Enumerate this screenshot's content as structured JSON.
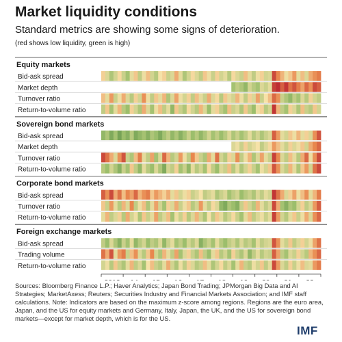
{
  "header": {
    "title": "Market liquidity conditions",
    "subtitle": "Standard metrics are showing some signs of deterioration.",
    "note": "(red shows low liquidity, green is high)"
  },
  "chart_data": {
    "type": "heatmap",
    "title": "Market liquidity conditions",
    "legend": "red shows low liquidity, green is high",
    "x_ticks": [
      "2013",
      "14",
      "15",
      "16",
      "17",
      "18",
      "19",
      "20",
      "21",
      "22"
    ],
    "colors": {
      "low": "#b8222f",
      "mid_low": "#e8874e",
      "mid": "#f6e2a8",
      "mid_high": "#9cbe6c",
      "high": "#3f7a38",
      "missing": "#ffffff"
    },
    "groups": [
      {
        "name": "Equity markets",
        "rows": [
          {
            "name": "Bid-ask spread",
            "z": [
              -0.2,
              0.3,
              0.8,
              0.4,
              -0.1,
              0.5,
              0.9,
              0.2,
              -0.3,
              0.6,
              0.1,
              -0.4,
              0.4,
              0.7,
              0.0,
              -0.2,
              0.5,
              0.3,
              -0.6,
              0.2,
              0.8,
              0.4,
              -0.1,
              0.3,
              0.6,
              -0.3,
              0.1,
              0.5,
              -0.2,
              0.4,
              0.2,
              0.7,
              -0.1,
              0.3,
              0.5,
              -0.4,
              0.2,
              0.6,
              0.1,
              -0.2,
              0.4,
              0.3,
              -1.6,
              -1.0,
              -0.5,
              0.1,
              -0.3,
              -0.8,
              0.2,
              -0.4,
              0.3,
              -0.6,
              -0.9,
              -1.1
            ]
          },
          {
            "name": "Market depth",
            "z": [
              null,
              null,
              null,
              null,
              null,
              null,
              null,
              null,
              null,
              null,
              null,
              null,
              null,
              null,
              null,
              null,
              null,
              null,
              null,
              null,
              null,
              null,
              null,
              null,
              null,
              null,
              null,
              null,
              null,
              null,
              null,
              null,
              0.9,
              0.6,
              0.8,
              1.1,
              0.4,
              0.7,
              0.9,
              0.3,
              0.5,
              0.2,
              -1.7,
              -1.9,
              -1.4,
              -1.8,
              -1.2,
              -1.5,
              -1.1,
              -0.7,
              -1.3,
              -0.9,
              -1.6,
              -1.4
            ]
          },
          {
            "name": "Turnover ratio",
            "z": [
              -0.4,
              0.2,
              -0.8,
              0.5,
              0.1,
              -0.6,
              0.3,
              0.7,
              -0.2,
              0.4,
              -0.9,
              0.1,
              0.6,
              -0.3,
              0.2,
              -0.5,
              0.8,
              0.3,
              -0.7,
              0.1,
              0.4,
              -0.2,
              0.6,
              -0.4,
              0.2,
              0.5,
              -0.6,
              0.3,
              -0.1,
              0.7,
              -0.3,
              0.2,
              0.4,
              -0.5,
              0.1,
              0.6,
              -0.2,
              0.3,
              -0.7,
              0.5,
              0.0,
              -0.4,
              -1.3,
              -0.9,
              0.5,
              0.8,
              1.1,
              0.6,
              0.9,
              0.3,
              0.7,
              -0.2,
              0.4,
              0.6
            ]
          },
          {
            "name": "Return-to-volume ratio",
            "z": [
              0.6,
              -0.3,
              0.9,
              0.2,
              -0.5,
              0.7,
              1.0,
              -0.2,
              0.4,
              0.8,
              -0.6,
              0.3,
              0.9,
              0.1,
              -0.4,
              0.6,
              0.2,
              1.1,
              -0.3,
              0.5,
              0.8,
              -0.1,
              0.4,
              0.7,
              -0.5,
              0.3,
              1.0,
              0.2,
              -0.2,
              0.6,
              0.9,
              -0.4,
              0.5,
              0.3,
              0.8,
              -0.3,
              0.6,
              1.0,
              0.1,
              -0.2,
              0.7,
              0.4,
              -1.8,
              -0.5,
              0.6,
              0.9,
              -0.2,
              0.3,
              0.8,
              -0.4,
              0.5,
              0.7,
              -0.3,
              0.4
            ]
          }
        ]
      },
      {
        "name": "Sovereign bond markets",
        "rows": [
          {
            "name": "Bid-ask spread",
            "z": [
              1.1,
              0.8,
              1.3,
              0.9,
              1.4,
              1.0,
              1.2,
              0.7,
              1.3,
              1.1,
              0.9,
              1.2,
              0.8,
              1.0,
              1.3,
              0.9,
              0.6,
              1.1,
              0.8,
              1.2,
              0.9,
              0.5,
              1.0,
              0.7,
              1.1,
              0.8,
              0.4,
              0.9,
              0.6,
              1.0,
              0.7,
              0.3,
              0.8,
              0.5,
              0.9,
              0.6,
              0.2,
              0.7,
              0.4,
              0.8,
              0.5,
              0.3,
              -1.4,
              -0.8,
              0.2,
              0.4,
              -0.3,
              0.1,
              -0.5,
              0.2,
              -0.2,
              0.3,
              -0.9,
              -1.5
            ]
          },
          {
            "name": "Market depth",
            "z": [
              null,
              null,
              null,
              null,
              null,
              null,
              null,
              null,
              null,
              null,
              null,
              null,
              null,
              null,
              null,
              null,
              null,
              null,
              null,
              null,
              null,
              null,
              null,
              null,
              null,
              null,
              null,
              null,
              null,
              null,
              null,
              null,
              0.3,
              0.1,
              0.5,
              -0.2,
              0.4,
              0.2,
              0.0,
              0.6,
              0.3,
              -0.1,
              -0.8,
              -0.4,
              0.2,
              0.5,
              -0.2,
              0.3,
              0.1,
              -0.3,
              0.4,
              -0.6,
              -1.0,
              -1.3
            ]
          },
          {
            "name": "Turnover ratio",
            "z": [
              -1.6,
              -1.2,
              -0.6,
              0.3,
              -0.9,
              -1.5,
              0.5,
              0.8,
              -0.4,
              -1.1,
              0.2,
              0.6,
              -0.7,
              0.9,
              0.3,
              -1.3,
              -0.5,
              0.7,
              0.4,
              -0.8,
              0.1,
              0.6,
              -1.0,
              -0.3,
              0.5,
              0.8,
              -0.6,
              0.2,
              -1.2,
              0.4,
              0.7,
              -0.2,
              0.3,
              -0.9,
              0.6,
              0.1,
              -0.5,
              0.8,
              0.3,
              -0.7,
              0.2,
              0.5,
              -1.7,
              -1.0,
              0.3,
              0.6,
              -0.4,
              0.2,
              0.7,
              -0.6,
              -1.3,
              0.1,
              -0.9,
              -1.6
            ]
          },
          {
            "name": "Return-to-volume ratio",
            "z": [
              0.7,
              1.0,
              0.4,
              0.8,
              1.2,
              0.5,
              0.9,
              -0.3,
              0.6,
              1.1,
              0.2,
              0.7,
              1.0,
              0.3,
              0.8,
              1.3,
              0.4,
              0.6,
              -0.2,
              0.9,
              0.5,
              1.1,
              0.2,
              0.7,
              0.4,
              0.9,
              -0.1,
              0.6,
              1.0,
              0.3,
              0.5,
              -0.4,
              0.7,
              0.2,
              0.8,
              0.4,
              -0.2,
              0.5,
              0.9,
              0.1,
              0.4,
              -0.3,
              -1.5,
              -0.9,
              0.3,
              0.6,
              -0.5,
              0.2,
              0.8,
              -0.3,
              -0.8,
              0.4,
              -1.2,
              -1.6
            ]
          }
        ]
      },
      {
        "name": "Corporate bond markets",
        "rows": [
          {
            "name": "Bid-ask spread",
            "z": [
              -1.4,
              -0.9,
              -1.6,
              -0.6,
              -1.2,
              -0.4,
              -1.0,
              -0.7,
              -1.3,
              -0.5,
              -0.9,
              -1.1,
              -0.3,
              -0.8,
              -0.5,
              -0.2,
              -0.6,
              0.2,
              -0.3,
              0.4,
              0.1,
              -0.2,
              0.5,
              0.3,
              0.0,
              0.6,
              0.4,
              0.2,
              0.8,
              0.5,
              0.3,
              0.9,
              0.6,
              0.4,
              1.0,
              0.7,
              0.5,
              0.8,
              0.3,
              0.6,
              0.2,
              0.4,
              -1.8,
              -1.2,
              -0.6,
              0.3,
              -0.2,
              -0.7,
              0.1,
              -0.4,
              -0.9,
              0.2,
              -0.5,
              -1.1
            ]
          },
          {
            "name": "Turnover ratio",
            "z": [
              -0.3,
              0.5,
              -0.8,
              0.2,
              0.7,
              -0.5,
              0.3,
              -1.0,
              0.6,
              0.1,
              -0.4,
              0.8,
              0.2,
              -0.7,
              0.4,
              0.9,
              -0.2,
              0.3,
              -0.6,
              0.5,
              0.1,
              -0.3,
              0.7,
              0.4,
              -0.8,
              0.2,
              0.6,
              -0.1,
              0.3,
              1.1,
              1.3,
              0.8,
              1.0,
              1.2,
              0.5,
              -0.3,
              0.4,
              0.7,
              -0.5,
              0.2,
              0.6,
              0.3,
              -1.6,
              -0.6,
              0.9,
              1.2,
              0.8,
              1.0,
              0.4,
              -0.2,
              0.6,
              0.3,
              -0.8,
              -1.4
            ]
          },
          {
            "name": "Return-to-volume ratio",
            "z": [
              0.2,
              -0.5,
              0.6,
              0.3,
              -0.2,
              0.7,
              -0.6,
              0.4,
              0.1,
              0.8,
              -0.3,
              0.5,
              0.2,
              -0.7,
              0.6,
              0.3,
              -0.4,
              0.9,
              0.1,
              0.5,
              -0.2,
              0.7,
              0.3,
              -0.5,
              0.4,
              0.8,
              0.0,
              0.6,
              -0.3,
              0.2,
              0.7,
              0.4,
              -0.1,
              0.5,
              0.9,
              0.2,
              -0.4,
              0.6,
              0.3,
              0.1,
              0.5,
              0.2,
              -1.7,
              -0.8,
              0.4,
              0.7,
              0.2,
              -0.3,
              0.5,
              0.1,
              -0.6,
              0.3,
              -0.9,
              -1.3
            ]
          }
        ]
      },
      {
        "name": "Foreign exchange markets",
        "rows": [
          {
            "name": "Bid-ask spread",
            "z": [
              0.6,
              1.0,
              0.3,
              0.8,
              1.2,
              0.5,
              0.9,
              0.2,
              1.1,
              0.7,
              0.4,
              1.0,
              0.6,
              0.8,
              0.3,
              1.1,
              0.5,
              0.2,
              0.9,
              0.6,
              1.0,
              0.4,
              0.7,
              0.3,
              1.2,
              0.8,
              0.5,
              0.9,
              0.2,
              0.7,
              1.0,
              0.6,
              0.4,
              0.8,
              0.3,
              0.7,
              0.5,
              0.9,
              0.2,
              0.6,
              0.4,
              0.3,
              -1.5,
              -0.9,
              0.2,
              0.5,
              -0.3,
              0.6,
              0.3,
              -0.2,
              0.4,
              0.1,
              -0.7,
              -1.2
            ]
          },
          {
            "name": "Trading volume",
            "z": [
              -1.2,
              -0.6,
              -1.5,
              0.2,
              -0.8,
              -1.1,
              0.5,
              -0.4,
              -0.9,
              0.3,
              0.7,
              -0.3,
              -1.0,
              0.4,
              0.8,
              -0.5,
              0.2,
              0.6,
              -0.7,
              0.9,
              0.3,
              -0.2,
              0.5,
              0.8,
              -0.4,
              0.6,
              1.0,
              0.2,
              -0.3,
              0.7,
              0.4,
              0.9,
              -0.2,
              0.5,
              0.8,
              0.3,
              1.1,
              0.6,
              0.2,
              0.7,
              0.4,
              0.5,
              -1.4,
              -0.7,
              0.6,
              0.9,
              0.3,
              0.5,
              -0.2,
              0.4,
              0.7,
              -0.5,
              -0.9,
              -1.3
            ]
          },
          {
            "name": "Return-to-volume ratio",
            "z": [
              0.4,
              0.1,
              0.7,
              -0.3,
              0.5,
              0.8,
              0.2,
              -0.5,
              0.6,
              0.3,
              0.9,
              0.0,
              -0.4,
              0.5,
              0.7,
              0.2,
              -0.6,
              0.4,
              0.8,
              0.1,
              0.6,
              -0.2,
              0.3,
              0.7,
              0.5,
              -0.4,
              0.2,
              0.8,
              0.4,
              -0.1,
              0.6,
              0.3,
              0.9,
              0.2,
              -0.5,
              0.5,
              0.7,
              0.1,
              0.4,
              -0.3,
              0.6,
              0.2,
              -1.6,
              -0.8,
              0.3,
              0.6,
              -0.2,
              0.5,
              0.1,
              -0.4,
              0.3,
              0.2,
              -0.8,
              -1.1
            ]
          }
        ]
      }
    ]
  },
  "footer": {
    "sources": "Sources: Bloomberg Finance L.P.; Haver Analytics; Japan Bond Trading; JPMorgan Big Data and AI Strategies; MarketAxess; Reuters; Securities Industry and Financial Markets Association; and IMF staff calculations. Note: Indicators are based on the maximum z-score among regions. Regions are the euro area, Japan, and the US for equity markets and Germany, Italy, Japan, the UK, and the US for sovereign bond markets—except for market depth, which is for the US.",
    "logo": "IMF"
  }
}
